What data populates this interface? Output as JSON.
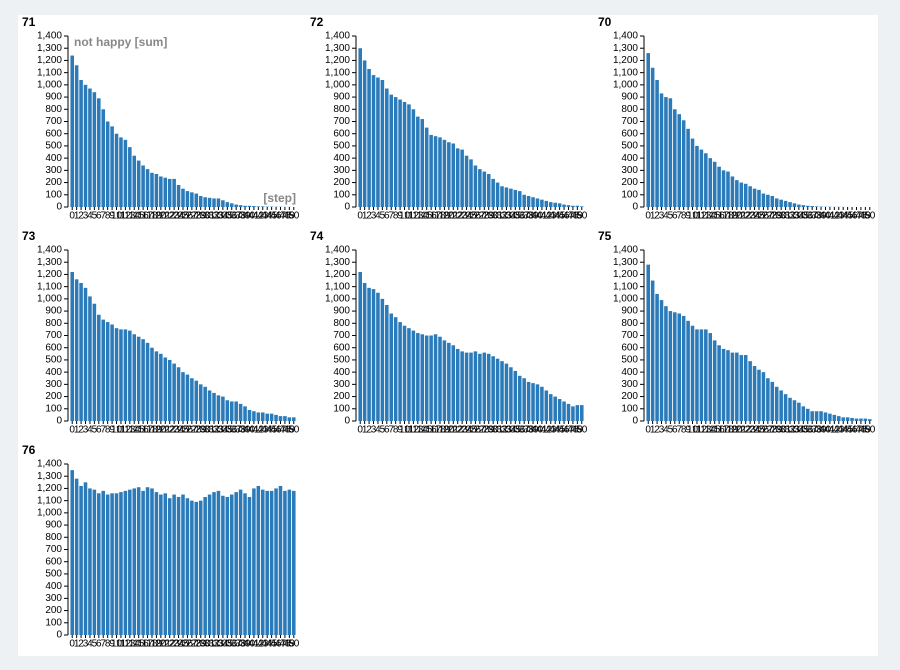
{
  "chart_data": [
    {
      "type": "bar",
      "title": "71",
      "y_label": "not happy [sum]",
      "x_label": "[step]",
      "color": "#2b7bba",
      "x": [
        0,
        1,
        2,
        3,
        4,
        5,
        6,
        7,
        8,
        9,
        10,
        11,
        12,
        13,
        14,
        15,
        16,
        17,
        18,
        19,
        20,
        21,
        22,
        23,
        24,
        25,
        26,
        27,
        28,
        29,
        30,
        31,
        32,
        33,
        34,
        35,
        36,
        37,
        38,
        39,
        40,
        41,
        42,
        43,
        44,
        45,
        46,
        47,
        48,
        49,
        50
      ],
      "values": [
        1240,
        1160,
        1040,
        1000,
        970,
        940,
        890,
        800,
        700,
        660,
        600,
        570,
        550,
        490,
        420,
        380,
        340,
        310,
        280,
        270,
        250,
        240,
        230,
        230,
        180,
        150,
        130,
        120,
        110,
        90,
        80,
        75,
        70,
        70,
        55,
        40,
        30,
        20,
        15,
        10,
        10,
        8,
        5,
        5,
        3,
        3,
        2,
        2,
        1,
        1,
        0
      ],
      "ylim": [
        0,
        1400
      ],
      "yticks": [
        0,
        100,
        200,
        300,
        400,
        500,
        600,
        700,
        800,
        900,
        {
          "value": 1000,
          "label": "1,000"
        },
        {
          "value": 1100,
          "label": "1,100"
        },
        {
          "value": 1200,
          "label": "1,200"
        },
        {
          "value": 1300,
          "label": "1,300"
        },
        {
          "value": 1400,
          "label": "1,400"
        }
      ]
    },
    {
      "type": "bar",
      "title": "72",
      "color": "#2b7bba",
      "x": [
        0,
        1,
        2,
        3,
        4,
        5,
        6,
        7,
        8,
        9,
        10,
        11,
        12,
        13,
        14,
        15,
        16,
        17,
        18,
        19,
        20,
        21,
        22,
        23,
        24,
        25,
        26,
        27,
        28,
        29,
        30,
        31,
        32,
        33,
        34,
        35,
        36,
        37,
        38,
        39,
        40,
        41,
        42,
        43,
        44,
        45,
        46,
        47,
        48,
        49,
        50
      ],
      "values": [
        1300,
        1200,
        1130,
        1080,
        1060,
        1040,
        970,
        920,
        900,
        880,
        860,
        840,
        800,
        740,
        720,
        650,
        590,
        580,
        570,
        550,
        530,
        520,
        480,
        470,
        420,
        390,
        340,
        310,
        290,
        270,
        230,
        200,
        170,
        160,
        150,
        140,
        130,
        100,
        90,
        80,
        70,
        60,
        50,
        40,
        35,
        30,
        20,
        15,
        10,
        10,
        5
      ],
      "ylim": [
        0,
        1400
      ],
      "yticks": [
        0,
        100,
        200,
        300,
        400,
        500,
        600,
        700,
        800,
        900,
        {
          "value": 1000,
          "label": "1,000"
        },
        {
          "value": 1100,
          "label": "1,100"
        },
        {
          "value": 1200,
          "label": "1,200"
        },
        {
          "value": 1300,
          "label": "1,300"
        },
        {
          "value": 1400,
          "label": "1,400"
        }
      ]
    },
    {
      "type": "bar",
      "title": "70",
      "color": "#2b7bba",
      "x": [
        0,
        1,
        2,
        3,
        4,
        5,
        6,
        7,
        8,
        9,
        10,
        11,
        12,
        13,
        14,
        15,
        16,
        17,
        18,
        19,
        20,
        21,
        22,
        23,
        24,
        25,
        26,
        27,
        28,
        29,
        30,
        31,
        32,
        33,
        34,
        35,
        36,
        37,
        38,
        39,
        40,
        41,
        42,
        43,
        44,
        45,
        46,
        47,
        48,
        49,
        50
      ],
      "values": [
        1260,
        1140,
        1040,
        930,
        900,
        890,
        800,
        760,
        710,
        640,
        560,
        500,
        470,
        440,
        400,
        370,
        330,
        300,
        290,
        250,
        220,
        200,
        190,
        170,
        150,
        140,
        110,
        100,
        90,
        70,
        60,
        50,
        40,
        30,
        20,
        15,
        10,
        8,
        5,
        3,
        2,
        2,
        1,
        1,
        1,
        0,
        0,
        0,
        0,
        0,
        0
      ],
      "ylim": [
        0,
        1400
      ],
      "yticks": [
        0,
        100,
        200,
        300,
        400,
        500,
        600,
        700,
        800,
        900,
        {
          "value": 1000,
          "label": "1,000"
        },
        {
          "value": 1100,
          "label": "1,100"
        },
        {
          "value": 1200,
          "label": "1,200"
        },
        {
          "value": 1300,
          "label": "1,300"
        },
        {
          "value": 1400,
          "label": "1,400"
        }
      ]
    },
    {
      "type": "bar",
      "title": "73",
      "color": "#2b7bba",
      "x": [
        0,
        1,
        2,
        3,
        4,
        5,
        6,
        7,
        8,
        9,
        10,
        11,
        12,
        13,
        14,
        15,
        16,
        17,
        18,
        19,
        20,
        21,
        22,
        23,
        24,
        25,
        26,
        27,
        28,
        29,
        30,
        31,
        32,
        33,
        34,
        35,
        36,
        37,
        38,
        39,
        40,
        41,
        42,
        43,
        44,
        45,
        46,
        47,
        48,
        49,
        50
      ],
      "values": [
        1220,
        1160,
        1130,
        1090,
        1020,
        960,
        870,
        830,
        810,
        790,
        760,
        750,
        750,
        740,
        710,
        690,
        670,
        640,
        600,
        570,
        550,
        520,
        500,
        470,
        440,
        400,
        380,
        350,
        330,
        300,
        280,
        250,
        230,
        210,
        200,
        170,
        160,
        160,
        140,
        120,
        90,
        80,
        70,
        70,
        60,
        60,
        50,
        40,
        40,
        30,
        30
      ],
      "ylim": [
        0,
        1400
      ],
      "yticks": [
        0,
        100,
        200,
        300,
        400,
        500,
        600,
        700,
        800,
        900,
        {
          "value": 1000,
          "label": "1,000"
        },
        {
          "value": 1100,
          "label": "1,100"
        },
        {
          "value": 1200,
          "label": "1,200"
        },
        {
          "value": 1300,
          "label": "1,300"
        },
        {
          "value": 1400,
          "label": "1,400"
        }
      ]
    },
    {
      "type": "bar",
      "title": "74",
      "color": "#2b7bba",
      "x": [
        0,
        1,
        2,
        3,
        4,
        5,
        6,
        7,
        8,
        9,
        10,
        11,
        12,
        13,
        14,
        15,
        16,
        17,
        18,
        19,
        20,
        21,
        22,
        23,
        24,
        25,
        26,
        27,
        28,
        29,
        30,
        31,
        32,
        33,
        34,
        35,
        36,
        37,
        38,
        39,
        40,
        41,
        42,
        43,
        44,
        45,
        46,
        47,
        48,
        49,
        50
      ],
      "values": [
        1220,
        1130,
        1090,
        1080,
        1050,
        1000,
        950,
        880,
        850,
        810,
        780,
        760,
        740,
        720,
        710,
        700,
        700,
        710,
        690,
        660,
        640,
        620,
        590,
        570,
        560,
        560,
        570,
        550,
        560,
        550,
        530,
        510,
        490,
        470,
        440,
        410,
        370,
        350,
        320,
        310,
        300,
        280,
        250,
        220,
        200,
        180,
        160,
        140,
        120,
        130,
        130
      ],
      "ylim": [
        0,
        1400
      ],
      "yticks": [
        0,
        100,
        200,
        300,
        400,
        500,
        600,
        700,
        800,
        900,
        {
          "value": 1000,
          "label": "1,000"
        },
        {
          "value": 1100,
          "label": "1,100"
        },
        {
          "value": 1200,
          "label": "1,200"
        },
        {
          "value": 1300,
          "label": "1,300"
        },
        {
          "value": 1400,
          "label": "1,400"
        }
      ]
    },
    {
      "type": "bar",
      "title": "75",
      "color": "#2b7bba",
      "x": [
        0,
        1,
        2,
        3,
        4,
        5,
        6,
        7,
        8,
        9,
        10,
        11,
        12,
        13,
        14,
        15,
        16,
        17,
        18,
        19,
        20,
        21,
        22,
        23,
        24,
        25,
        26,
        27,
        28,
        29,
        30,
        31,
        32,
        33,
        34,
        35,
        36,
        37,
        38,
        39,
        40,
        41,
        42,
        43,
        44,
        45,
        46,
        47,
        48,
        49,
        50
      ],
      "values": [
        1280,
        1150,
        1040,
        990,
        940,
        900,
        890,
        880,
        860,
        820,
        780,
        750,
        750,
        750,
        720,
        660,
        620,
        590,
        580,
        560,
        560,
        540,
        540,
        490,
        450,
        420,
        400,
        350,
        320,
        280,
        250,
        220,
        190,
        170,
        150,
        120,
        100,
        80,
        80,
        80,
        70,
        60,
        50,
        40,
        30,
        30,
        25,
        20,
        20,
        20,
        15
      ],
      "ylim": [
        0,
        1400
      ],
      "yticks": [
        0,
        100,
        200,
        300,
        400,
        500,
        600,
        700,
        800,
        900,
        {
          "value": 1000,
          "label": "1,000"
        },
        {
          "value": 1100,
          "label": "1,100"
        },
        {
          "value": 1200,
          "label": "1,200"
        },
        {
          "value": 1300,
          "label": "1,300"
        },
        {
          "value": 1400,
          "label": "1,400"
        }
      ]
    },
    {
      "type": "bar",
      "title": "76",
      "color": "#2b7bba",
      "x": [
        0,
        1,
        2,
        3,
        4,
        5,
        6,
        7,
        8,
        9,
        10,
        11,
        12,
        13,
        14,
        15,
        16,
        17,
        18,
        19,
        20,
        21,
        22,
        23,
        24,
        25,
        26,
        27,
        28,
        29,
        30,
        31,
        32,
        33,
        34,
        35,
        36,
        37,
        38,
        39,
        40,
        41,
        42,
        43,
        44,
        45,
        46,
        47,
        48,
        49,
        50
      ],
      "values": [
        1350,
        1280,
        1220,
        1250,
        1200,
        1190,
        1160,
        1180,
        1150,
        1160,
        1160,
        1170,
        1180,
        1190,
        1200,
        1210,
        1180,
        1210,
        1200,
        1170,
        1150,
        1160,
        1120,
        1150,
        1130,
        1150,
        1120,
        1100,
        1090,
        1100,
        1130,
        1150,
        1170,
        1180,
        1140,
        1130,
        1150,
        1170,
        1190,
        1160,
        1130,
        1200,
        1220,
        1190,
        1180,
        1180,
        1200,
        1220,
        1180,
        1190,
        1180
      ],
      "ylim": [
        0,
        1400
      ],
      "yticks": [
        0,
        100,
        200,
        300,
        400,
        500,
        600,
        700,
        800,
        900,
        {
          "value": 1000,
          "label": "1,000"
        },
        {
          "value": 1100,
          "label": "1,100"
        },
        {
          "value": 1200,
          "label": "1,200"
        },
        {
          "value": 1300,
          "label": "1,300"
        },
        {
          "value": 1400,
          "label": "1,400"
        }
      ]
    }
  ]
}
